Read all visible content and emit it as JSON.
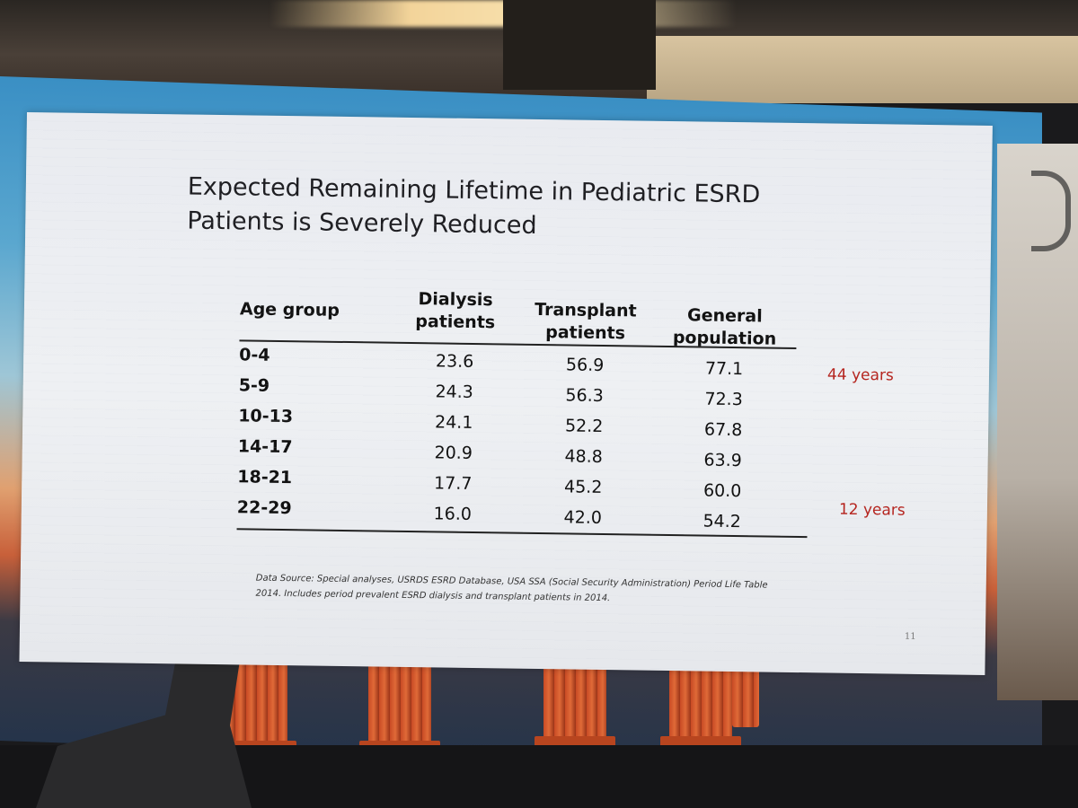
{
  "slide": {
    "title_line1": "Expected Remaining Lifetime in Pediatric ESRD",
    "title_line2": "Patients is Severely Reduced",
    "table": {
      "headers": {
        "age": "Age group",
        "dialysis_l1": "Dialysis",
        "dialysis_l2": "patients",
        "transplant_l1": "Transplant",
        "transplant_l2": "patients",
        "general_l1": "General",
        "general_l2": "population"
      },
      "rows": [
        {
          "age": "0-4",
          "dialysis": "23.6",
          "transplant": "56.9",
          "general": "77.1"
        },
        {
          "age": "5-9",
          "dialysis": "24.3",
          "transplant": "56.3",
          "general": "72.3"
        },
        {
          "age": "10-13",
          "dialysis": "24.1",
          "transplant": "52.2",
          "general": "67.8"
        },
        {
          "age": "14-17",
          "dialysis": "20.9",
          "transplant": "48.8",
          "general": "63.9"
        },
        {
          "age": "18-21",
          "dialysis": "17.7",
          "transplant": "45.2",
          "general": "60.0"
        },
        {
          "age": "22-29",
          "dialysis": "16.0",
          "transplant": "42.0",
          "general": "54.2"
        }
      ]
    },
    "notes": {
      "top": "44 years",
      "bottom": "12 years"
    },
    "source_line1": "Data Source: Special analyses, USRDS ESRD Database, USA SSA (Social Security Administration) Period Life Table",
    "source_line2": "2014. Includes period prevalent ESRD dialysis and transplant patients in 2014.",
    "page_number": "11"
  },
  "colors": {
    "note_red": "#b5241e",
    "slide_bg": "#eceef2",
    "text": "#111111"
  }
}
